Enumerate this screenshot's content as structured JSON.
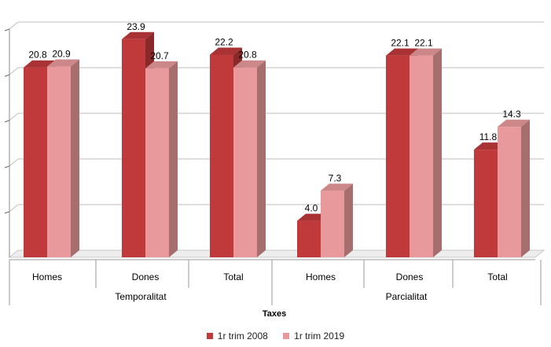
{
  "chart_data": {
    "type": "bar",
    "subtype": "3d-clustered-column",
    "xlabel": "Taxes",
    "ylabel": "",
    "ylim": [
      0,
      25
    ],
    "y_ticks": [
      5,
      10,
      15,
      20
    ],
    "grid": true,
    "legend_position": "bottom",
    "groups": [
      {
        "label": "Temporalitat",
        "categories": [
          "Homes",
          "Dones",
          "Total"
        ]
      },
      {
        "label": "Parcialitat",
        "categories": [
          "Homes",
          "Dones",
          "Total"
        ]
      }
    ],
    "categories": [
      "Homes",
      "Dones",
      "Total",
      "Homes",
      "Dones",
      "Total"
    ],
    "series": [
      {
        "name": "1r trim 2008",
        "color": "#c0393b",
        "values": [
          20.8,
          23.9,
          22.2,
          4.0,
          22.1,
          11.8
        ],
        "labels": [
          "20.8",
          "23.9",
          "22.2",
          "4.0",
          "22.1",
          "11.8"
        ]
      },
      {
        "name": "1r trim 2019",
        "color": "#e8999b",
        "values": [
          20.9,
          20.7,
          20.8,
          7.3,
          22.1,
          14.3
        ],
        "labels": [
          "20.9",
          "20.7",
          "20.8",
          "7.3",
          "22.1",
          "14.3"
        ]
      }
    ]
  }
}
